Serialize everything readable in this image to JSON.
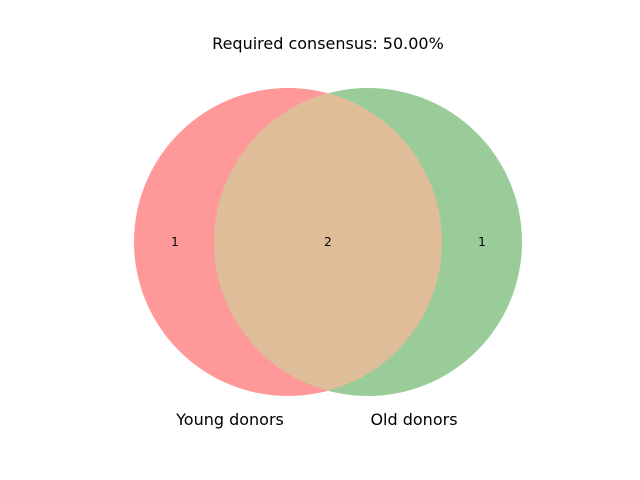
{
  "title": "Required consensus: 50.00%",
  "sets": [
    {
      "name": "Young donors",
      "only_count": "1",
      "color": "#ff9999"
    },
    {
      "name": "Old donors",
      "only_count": "1",
      "color": "#99cc99"
    }
  ],
  "intersection": {
    "count": "2",
    "color": "#e0bd99"
  }
}
